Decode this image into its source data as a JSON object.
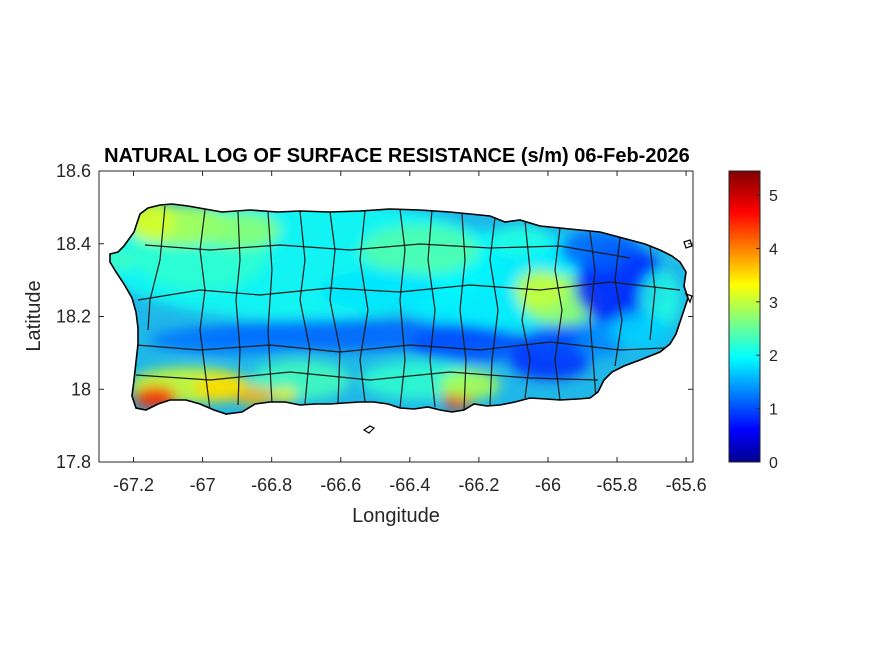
{
  "chart_data": {
    "type": "heatmap",
    "title": "NATURAL LOG OF SURFACE RESISTANCE (s/m) 06-Feb-2026",
    "xlabel": "Longitude",
    "ylabel": "Latitude",
    "xlim": [
      -67.3,
      -65.58
    ],
    "ylim": [
      17.8,
      18.6
    ],
    "xticks": [
      -67.2,
      -67,
      -66.8,
      -66.6,
      -66.4,
      -66.2,
      -66,
      -65.8,
      -65.6
    ],
    "xtick_labels": [
      "-67.2",
      "-67",
      "-66.8",
      "-66.6",
      "-66.4",
      "-66.2",
      "-66",
      "-65.8",
      "-65.6"
    ],
    "yticks": [
      17.8,
      18,
      18.2,
      18.4,
      18.6
    ],
    "ytick_labels": [
      "17.8",
      "18",
      "18.2",
      "18.4",
      "18.6"
    ],
    "colormap": "jet",
    "colorbar": {
      "range": [
        0,
        5.45
      ],
      "ticks": [
        0,
        1,
        2,
        3,
        4,
        5
      ],
      "tick_labels": [
        "0",
        "1",
        "2",
        "3",
        "4",
        "5"
      ],
      "position": "right"
    },
    "grid": false,
    "regions": [
      {
        "name": "",
        "lon": -66.6,
        "lat": 18.33,
        "value": 2.0
      },
      {
        "name": "",
        "lon": -66.95,
        "lat": 18.45,
        "value": 3.0
      },
      {
        "name": "",
        "lon": -66.35,
        "lat": 18.15,
        "value": 1.4
      },
      {
        "name": "",
        "lon": -67.12,
        "lat": 17.97,
        "value": 4.5
      },
      {
        "name": "",
        "lon": -66.27,
        "lat": 17.96,
        "value": 4.6
      },
      {
        "name": "",
        "lon": -65.8,
        "lat": 18.28,
        "value": 0.7
      },
      {
        "name": "",
        "lon": -66.05,
        "lat": 18.22,
        "value": 2.8
      }
    ]
  },
  "figure": {
    "background": "#ffffff",
    "axes_color": "#262626",
    "coast_color": "#000000"
  }
}
